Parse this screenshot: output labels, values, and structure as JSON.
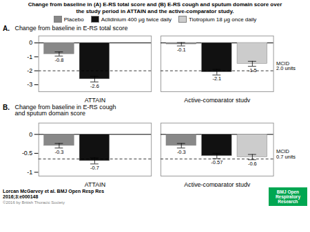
{
  "title": "Change from baseline in (A) E-RS total score and (B) E-RS cough and sputum domain score over\nthe study period in ATTAIN and the active-comparator study.",
  "chart_data": [
    {
      "type": "bar",
      "title": "A.",
      "categories": [
        "ATTAIN",
        "Active-comparator study"
      ],
      "series": [
        {
          "name": "Placebo",
          "color": "#888888",
          "values": [
            -0.8,
            -0.1
          ],
          "errors": [
            0.15,
            0.12
          ]
        },
        {
          "name": "Aclidinium 400 μg twice daily",
          "color": "#111111",
          "values": [
            -2.6,
            -2.1
          ],
          "errors": [
            0.2,
            0.2
          ]
        },
        {
          "name": "Tiotropium 18 μg once daily",
          "color": "#cccccc",
          "values": [
            null,
            -1.5
          ],
          "errors": [
            null,
            0.18
          ]
        }
      ],
      "ylabel": "Change from baseline in E-RS total score",
      "ylim": [
        -3.5,
        0.5
      ],
      "yticks": [
        0,
        -1,
        -2,
        -3
      ],
      "data_labels": true,
      "legend": "top",
      "annotations": [
        {
          "text": "MCID\n2.0 units",
          "y": -2.0,
          "line_style": "dashed"
        }
      ]
    },
    {
      "type": "bar",
      "title": "B.",
      "categories": [
        "ATTAIN",
        "Active-comparator study"
      ],
      "series": [
        {
          "name": "Placebo",
          "color": "#888888",
          "values": [
            -0.3,
            -0.3
          ],
          "errors": [
            0.06,
            0.06
          ]
        },
        {
          "name": "Aclidinium 400 μg twice daily",
          "color": "#111111",
          "values": [
            -0.7,
            -0.57
          ],
          "errors": [
            0.08,
            0.07
          ]
        },
        {
          "name": "Tiotropium 18 μg once daily",
          "color": "#cccccc",
          "values": [
            null,
            -0.6
          ],
          "errors": [
            null,
            0.07
          ]
        }
      ],
      "ylabel": "Change from baseline in E-RS cough\nand sputum domain score",
      "ylim": [
        -1.1,
        0.3
      ],
      "yticks": [
        0,
        -0.5,
        -1
      ],
      "data_labels": true,
      "annotations": [
        {
          "text": "MCID\n0.7 units",
          "y": -0.65,
          "line_style": "dashed"
        }
      ]
    }
  ],
  "annotations": [
    {
      "text": "Lorcan McGarvey et al. BMJ Open Resp Res\n2016;3:e000148"
    },
    {
      "text": "©2016 by British Thoracic Society",
      "color": "gray"
    },
    {
      "text": "BMJ Open\nRespiratory\nResearch",
      "color": "#00a651"
    }
  ]
}
